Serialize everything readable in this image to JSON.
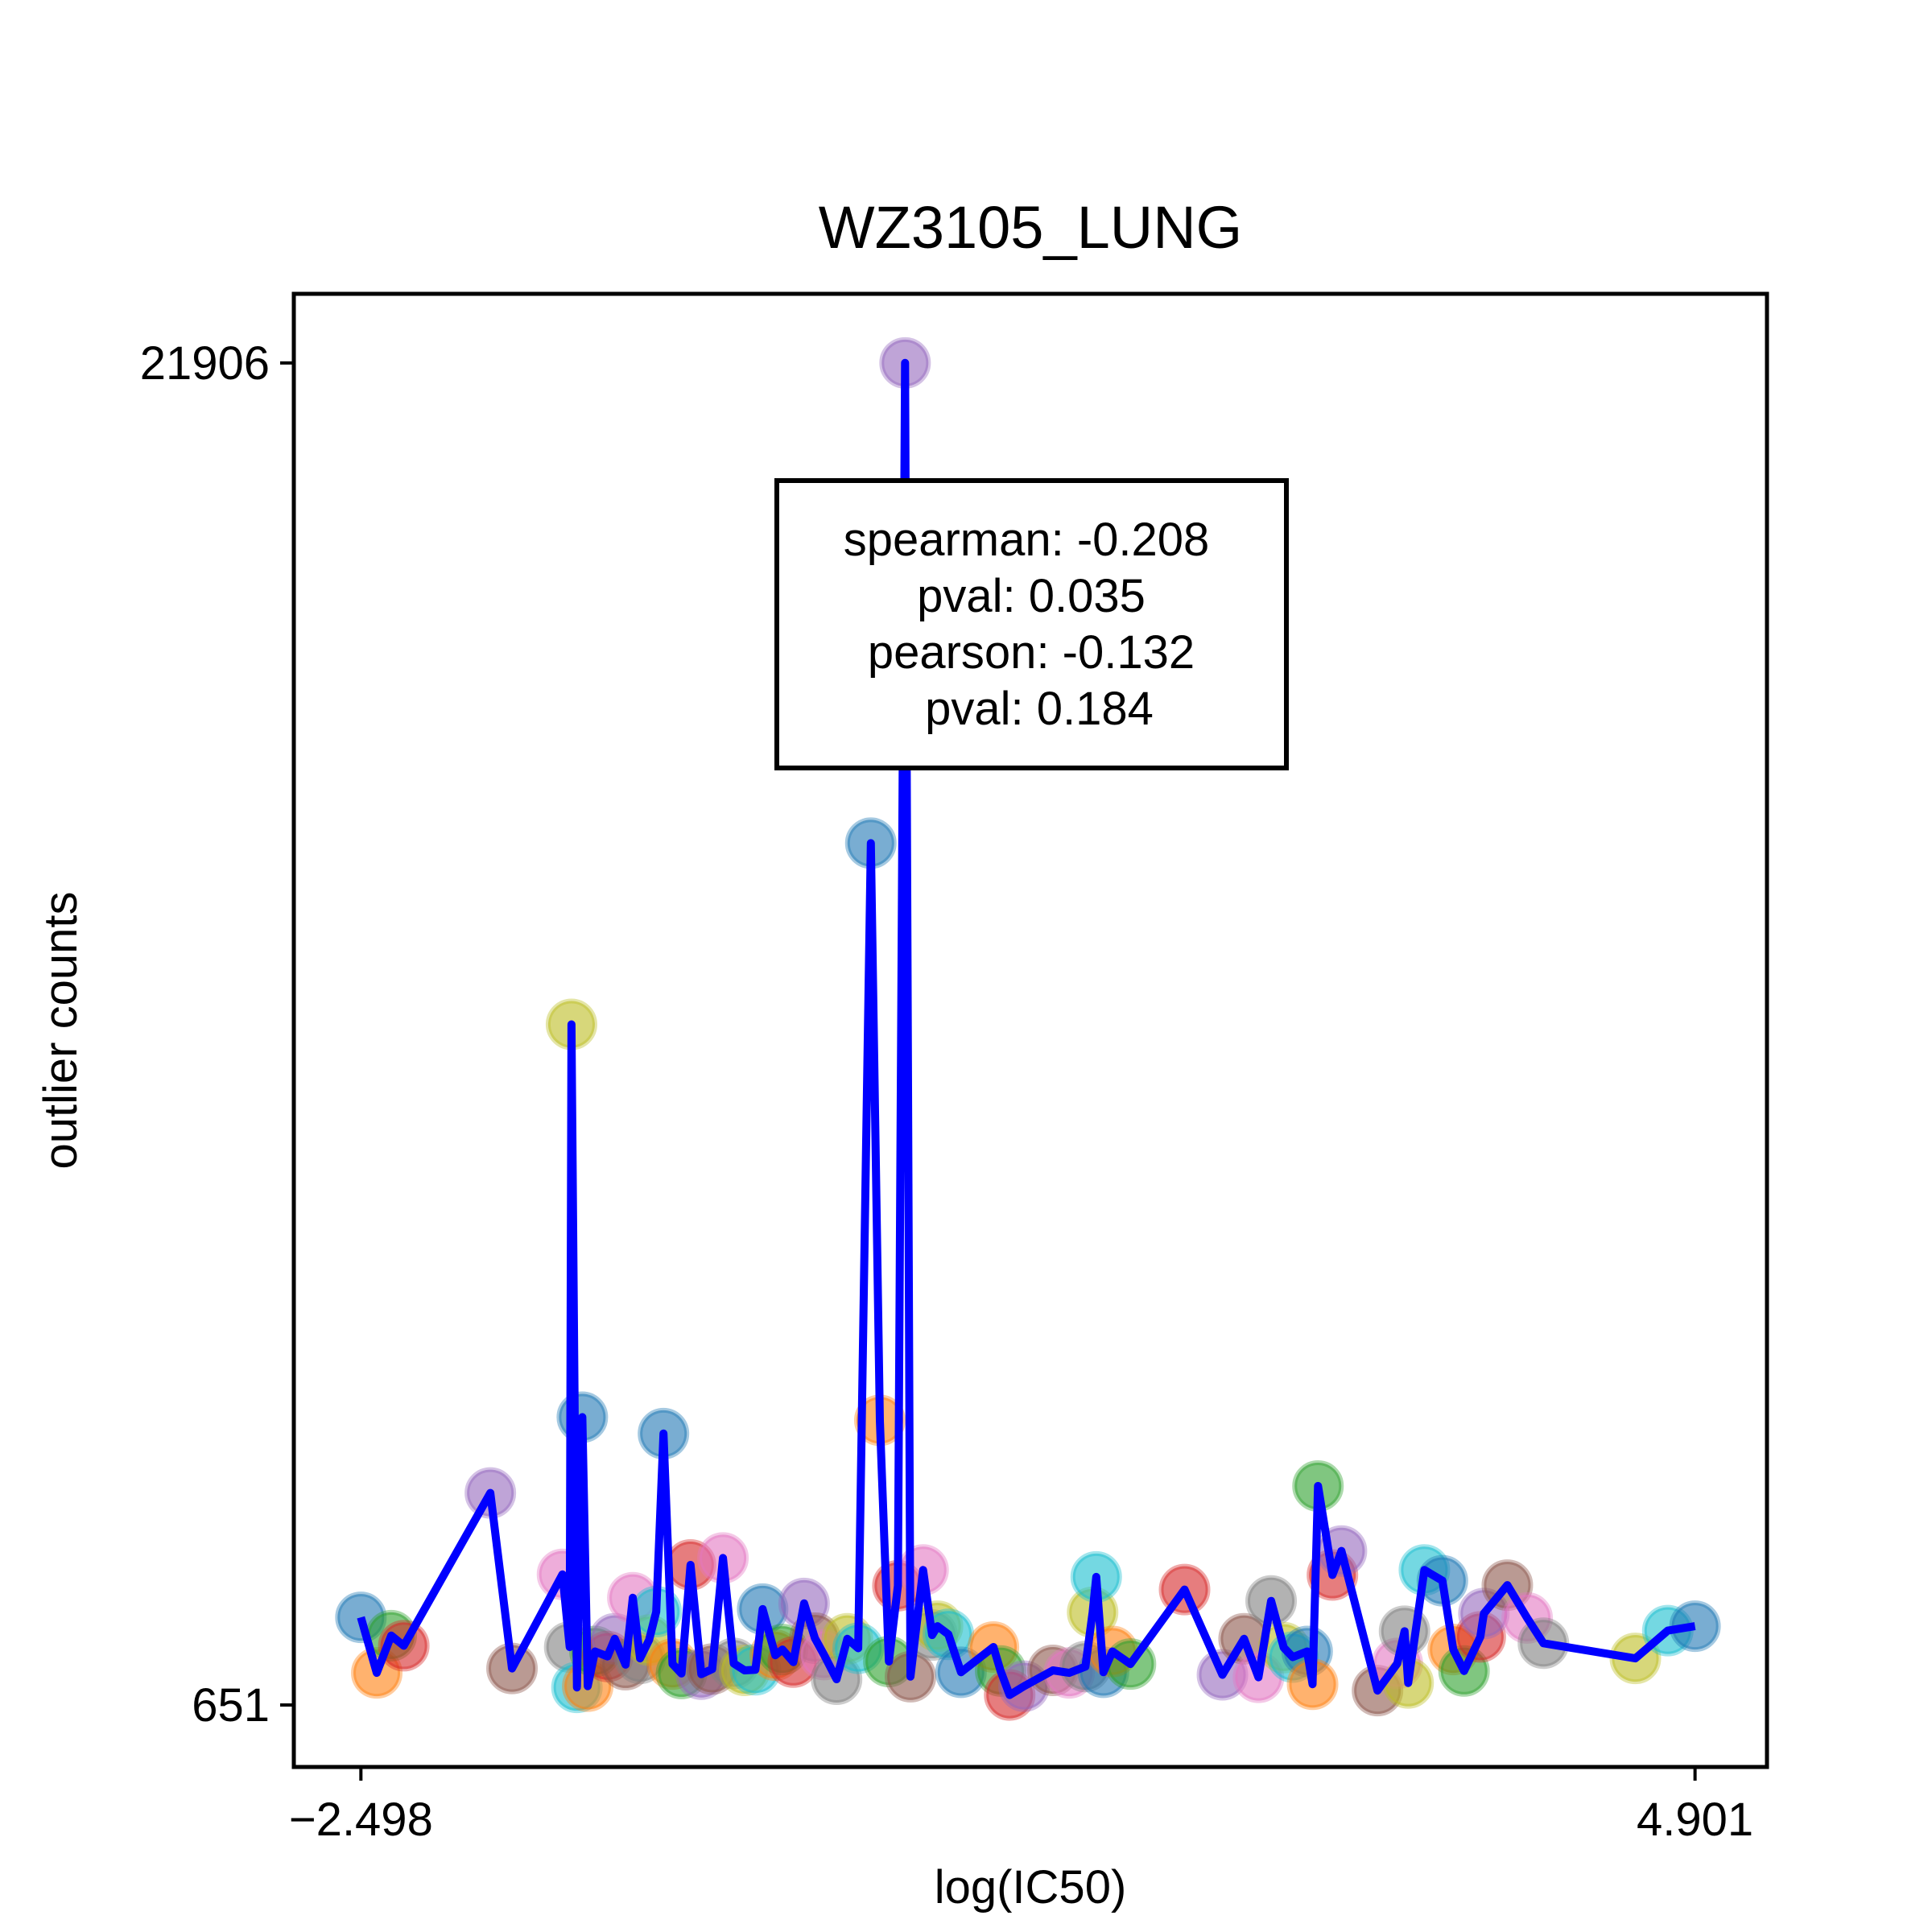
{
  "chart_data": {
    "type": "scatter",
    "title": "WZ3105_LUNG",
    "xlabel": "log(IC50)",
    "ylabel": "outlier counts",
    "xlim": [
      -2.87,
      5.3
    ],
    "ylim": [
      -330,
      23000
    ],
    "xticks": [
      -2.498,
      4.901
    ],
    "xtick_labels": [
      "−2.498",
      "4.901"
    ],
    "yticks": [
      651,
      21906
    ],
    "ytick_labels": [
      "651",
      "21906"
    ],
    "grid": false,
    "legend": "none",
    "line_color": "#0000ff",
    "annotation": {
      "lines": [
        "spearman: -0.208",
        "pval: 0.035",
        "pearson: -0.132",
        "pval: 0.184"
      ]
    },
    "palette": [
      "#1f77b4",
      "#ff7f0e",
      "#2ca02c",
      "#d62728",
      "#9467bd",
      "#8c564b",
      "#e377c2",
      "#7f7f7f",
      "#bcbd22",
      "#17becf"
    ],
    "points": [
      [
        -2.498,
        2040
      ],
      [
        -2.41,
        1160
      ],
      [
        -2.33,
        1750
      ],
      [
        -2.26,
        1590
      ],
      [
        -1.78,
        4010
      ],
      [
        -1.66,
        1230
      ],
      [
        -1.38,
        2720
      ],
      [
        -1.34,
        1570
      ],
      [
        -1.33,
        11430
      ],
      [
        -1.3,
        930
      ],
      [
        -1.27,
        5210
      ],
      [
        -1.24,
        950
      ],
      [
        -1.2,
        1500
      ],
      [
        -1.13,
        1420
      ],
      [
        -1.09,
        1700
      ],
      [
        -1.03,
        1290
      ],
      [
        -0.99,
        2350
      ],
      [
        -0.95,
        1390
      ],
      [
        -0.9,
        1680
      ],
      [
        -0.86,
        2130
      ],
      [
        -0.82,
        4950
      ],
      [
        -0.77,
        1300
      ],
      [
        -0.72,
        1150
      ],
      [
        -0.67,
        2870
      ],
      [
        -0.61,
        1140
      ],
      [
        -0.55,
        1220
      ],
      [
        -0.49,
        2980
      ],
      [
        -0.43,
        1310
      ],
      [
        -0.37,
        1200
      ],
      [
        -0.31,
        1210
      ],
      [
        -0.27,
        2170
      ],
      [
        -0.2,
        1440
      ],
      [
        -0.16,
        1530
      ],
      [
        -0.1,
        1330
      ],
      [
        -0.04,
        2260
      ],
      [
        0.02,
        1710
      ],
      [
        0.07,
        1450
      ],
      [
        0.14,
        1060
      ],
      [
        0.2,
        1700
      ],
      [
        0.26,
        1550
      ],
      [
        0.33,
        14300
      ],
      [
        0.38,
        5160
      ],
      [
        0.43,
        1340
      ],
      [
        0.48,
        2540
      ],
      [
        0.52,
        21906
      ],
      [
        0.55,
        1100
      ],
      [
        0.62,
        2790
      ],
      [
        0.67,
        1760
      ],
      [
        0.7,
        1900
      ],
      [
        0.76,
        1770
      ],
      [
        0.83,
        1170
      ],
      [
        1.01,
        1570
      ],
      [
        1.05,
        1190
      ],
      [
        1.1,
        810
      ],
      [
        1.18,
        950
      ],
      [
        1.34,
        1200
      ],
      [
        1.43,
        1160
      ],
      [
        1.52,
        1260
      ],
      [
        1.56,
        2120
      ],
      [
        1.58,
        2680
      ],
      [
        1.62,
        1170
      ],
      [
        1.67,
        1500
      ],
      [
        1.77,
        1300
      ],
      [
        2.07,
        2480
      ],
      [
        2.28,
        1130
      ],
      [
        2.4,
        1700
      ],
      [
        2.48,
        1090
      ],
      [
        2.55,
        2300
      ],
      [
        2.62,
        1560
      ],
      [
        2.67,
        1410
      ],
      [
        2.75,
        1500
      ],
      [
        2.78,
        980
      ],
      [
        2.81,
        4120
      ],
      [
        2.89,
        2710
      ],
      [
        2.94,
        3090
      ],
      [
        3.14,
        880
      ],
      [
        3.25,
        1310
      ],
      [
        3.29,
        1820
      ],
      [
        3.31,
        1000
      ],
      [
        3.4,
        2790
      ],
      [
        3.5,
        2620
      ],
      [
        3.56,
        1530
      ],
      [
        3.62,
        1190
      ],
      [
        3.71,
        1730
      ],
      [
        3.73,
        2100
      ],
      [
        3.86,
        2550
      ],
      [
        3.97,
        2030
      ],
      [
        4.06,
        1630
      ],
      [
        4.57,
        1390
      ],
      [
        4.75,
        1830
      ],
      [
        4.901,
        1900
      ]
    ]
  }
}
